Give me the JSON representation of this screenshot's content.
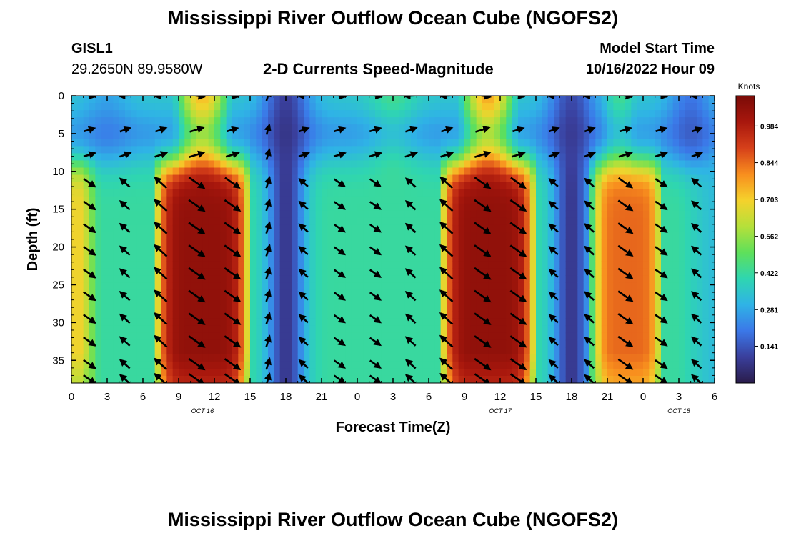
{
  "header": {
    "title": "Mississippi River Outflow Ocean Cube (NGOFS2)",
    "station_id": "GISL1",
    "station_coords": "29.2650N  89.9580W",
    "subtitle": "2-D Currents Speed-Magnitude",
    "model_start_label": "Model Start Time",
    "model_start_value": "10/16/2022 Hour 09",
    "second_title": "Mississippi River Outflow Ocean Cube (NGOFS2)"
  },
  "chart_data": {
    "type": "heatmap",
    "title": "2-D Currents Speed-Magnitude",
    "xlabel": "Forecast Time(Z)",
    "ylabel": "Depth (ft)",
    "x_range_hours": [
      0,
      54
    ],
    "y_range_ft": [
      0,
      38
    ],
    "y_inverted": true,
    "x_tick_labels": [
      "0",
      "3",
      "6",
      "9",
      "12",
      "15",
      "18",
      "21",
      "0",
      "3",
      "6",
      "9",
      "12",
      "15",
      "18",
      "21",
      "0",
      "3",
      "6"
    ],
    "y_ticks": [
      0,
      5,
      10,
      15,
      20,
      25,
      30,
      35
    ],
    "day_labels": [
      {
        "text": "OCT 16",
        "hour": 11
      },
      {
        "text": "OCT 17",
        "hour": 36
      },
      {
        "text": "OCT 18",
        "hour": 51
      }
    ],
    "colorbar": {
      "title": "Knots",
      "ticks": [
        "0.984",
        "0.844",
        "0.703",
        "0.562",
        "0.422",
        "0.281",
        "0.141"
      ],
      "min": 0.0,
      "max": 1.1,
      "colors": [
        "#2a1c4a",
        "#3a3f9c",
        "#3b78e8",
        "#2fb3e6",
        "#2fd6b0",
        "#5fe05a",
        "#b5e03a",
        "#f5d22c",
        "#f88e1e",
        "#d6401a",
        "#a8170d",
        "#7a0b07"
      ]
    },
    "speed_pattern": {
      "description": "Speed magnitude at depth vs forecast hour; strong bottom-layer maxima",
      "peak_hours": [
        11,
        35,
        46.5
      ],
      "peak_speed_knots": [
        1.05,
        1.05,
        0.85
      ],
      "minimum_hours": [
        18,
        42
      ],
      "minimum_speed_knots": [
        0.08,
        0.08
      ]
    }
  }
}
